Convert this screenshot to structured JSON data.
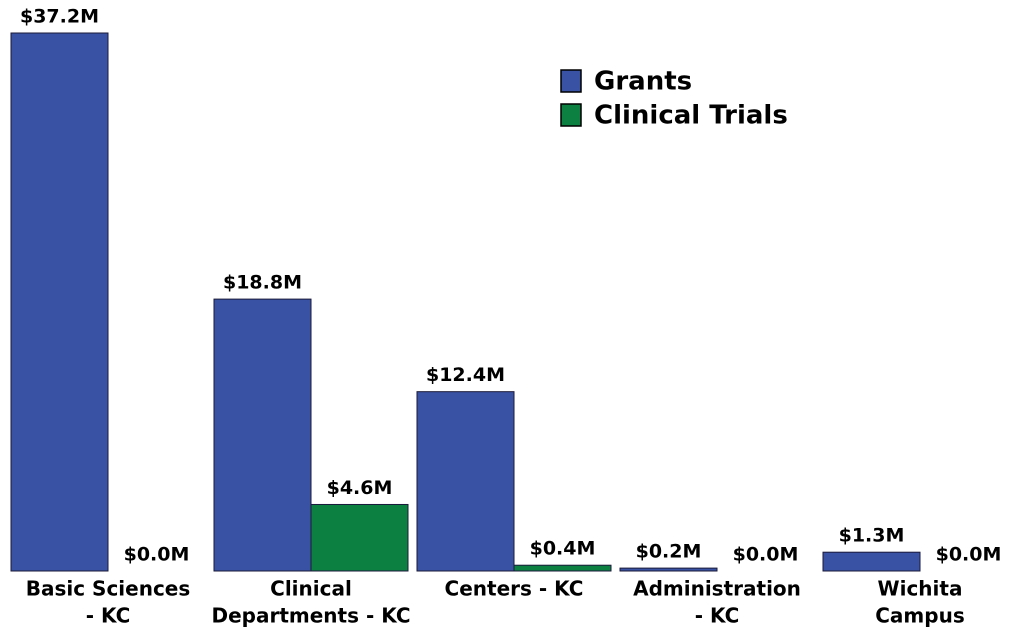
{
  "chart_data": {
    "type": "bar",
    "categories": [
      [
        "Basic Sciences",
        "- KC"
      ],
      [
        "Clinical",
        "Departments - KC"
      ],
      [
        "Centers - KC"
      ],
      [
        "Administration",
        "- KC"
      ],
      [
        "Wichita",
        "Campus"
      ]
    ],
    "series": [
      {
        "name": "Grants",
        "color": "#3a52a3",
        "values": [
          37.2,
          18.8,
          12.4,
          0.2,
          1.3
        ],
        "value_labels": [
          "$37.2M",
          "$18.8M",
          "$12.4M",
          "$0.2M",
          "$1.3M"
        ]
      },
      {
        "name": "Clinical Trials",
        "color": "#0b8040",
        "values": [
          0.0,
          4.6,
          0.4,
          0.0,
          0.0
        ],
        "value_labels": [
          "$0.0M",
          "$4.6M",
          "$0.4M",
          "$0.0M",
          "$0.0M"
        ]
      }
    ],
    "legend": "top-right"
  }
}
